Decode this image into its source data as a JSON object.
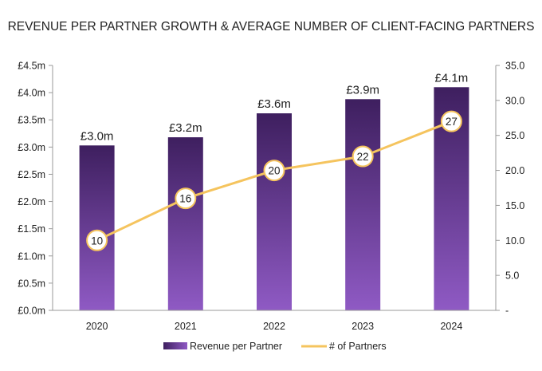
{
  "chart_data": {
    "type": "bar",
    "title": "REVENUE PER PARTNER GROWTH & AVERAGE NUMBER OF CLIENT-FACING PARTNERS",
    "categories": [
      "2020",
      "2021",
      "2022",
      "2023",
      "2024"
    ],
    "series": [
      {
        "name": "Revenue per Partner",
        "type": "bar",
        "axis": "left",
        "values": [
          3.03,
          3.18,
          3.62,
          3.88,
          4.1
        ],
        "labels": [
          "£3.0m",
          "£3.2m",
          "£3.6m",
          "£3.9m",
          "£4.1m"
        ]
      },
      {
        "name": "# of Partners",
        "type": "line",
        "axis": "right",
        "values": [
          10,
          16,
          20,
          22,
          27
        ],
        "labels": [
          "10",
          "16",
          "20",
          "22",
          "27"
        ]
      }
    ],
    "y_left": {
      "ylim": [
        0,
        4.5
      ],
      "ticks": [
        0,
        0.5,
        1,
        1.5,
        2,
        2.5,
        3,
        3.5,
        4,
        4.5
      ],
      "tick_labels": [
        "£0.0m",
        "£0.5m",
        "£1.0m",
        "£1.5m",
        "£2.0m",
        "£2.5m",
        "£3.0m",
        "£3.5m",
        "£4.0m",
        "£4.5m"
      ]
    },
    "y_right": {
      "ylim": [
        0,
        35
      ],
      "ticks": [
        0,
        5,
        10,
        15,
        20,
        25,
        30,
        35
      ],
      "tick_labels": [
        "-",
        "5.0",
        "10.0",
        "15.0",
        "20.0",
        "25.0",
        "30.0",
        "35.0"
      ]
    },
    "grid": false,
    "legend_position": "bottom",
    "colors": {
      "bar_top": "#3e1f5f",
      "bar_bottom": "#8f5ac4",
      "line": "#f5c45e",
      "marker_fill": "#ffffff",
      "axis": "#999999",
      "text": "#222222"
    }
  }
}
